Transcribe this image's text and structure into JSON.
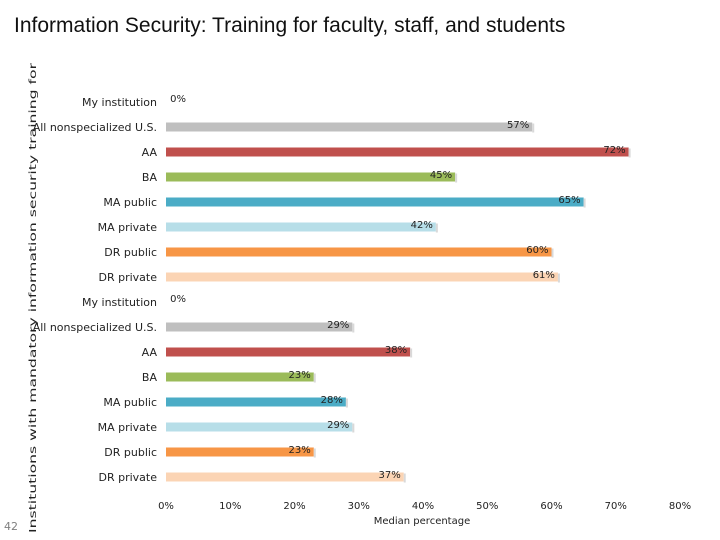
{
  "header": {
    "title": "Information Security: Training for faculty, staff, and students"
  },
  "footer": {
    "page_number": "42"
  },
  "chart_data": {
    "type": "bar",
    "orientation": "horizontal",
    "xlabel": "Median percentage",
    "ylabel": "Institutions with mandatory information security training for",
    "xlim": [
      0,
      80
    ],
    "x_ticks": [
      "0%",
      "10%",
      "20%",
      "30%",
      "40%",
      "50%",
      "60%",
      "70%",
      "80%"
    ],
    "grid": false,
    "legend": "none",
    "groups": [
      {
        "categories": [
          "My institution",
          "All nonspecialized U.S.",
          "AA",
          "BA",
          "MA public",
          "MA private",
          "DR public",
          "DR private"
        ],
        "values": [
          0,
          57,
          72,
          45,
          65,
          42,
          60,
          61
        ],
        "labels": [
          "0%",
          "57%",
          "72%",
          "45%",
          "65%",
          "42%",
          "60%",
          "61%"
        ]
      },
      {
        "categories": [
          "My institution",
          "All nonspecialized U.S.",
          "AA",
          "BA",
          "MA public",
          "MA private",
          "DR public",
          "DR private"
        ],
        "values": [
          0,
          29,
          38,
          23,
          28,
          29,
          23,
          37
        ],
        "labels": [
          "0%",
          "29%",
          "38%",
          "23%",
          "28%",
          "29%",
          "23%",
          "37%"
        ]
      }
    ],
    "colors": [
      "#ffffff",
      "#bfbfbf",
      "#c0504d",
      "#9bbb59",
      "#4bacc6",
      "#b7dee8",
      "#f79646",
      "#fbd4b4"
    ]
  }
}
